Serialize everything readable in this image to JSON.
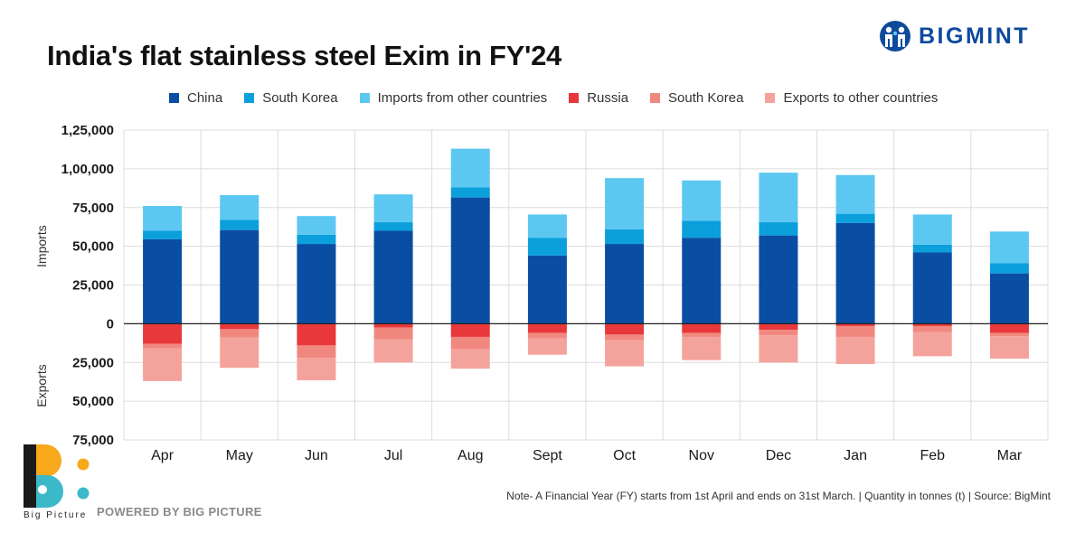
{
  "brand": {
    "name": "BIGMINT",
    "color": "#0d4a9c"
  },
  "footer": {
    "note": "Note- A Financial Year (FY) starts from 1st April and ends on 31st March. | Quantity in tonnes (t) | Source: BigMint",
    "powered_by": "POWERED BY BIG PICTURE",
    "logo_name": "Big Picture"
  },
  "chart_data": {
    "type": "bar",
    "stacked": true,
    "title": "India's flat stainless steel Exim in FY'24",
    "ylabel_positive": "Imports",
    "ylabel_negative": "Exports",
    "categories": [
      "Apr",
      "May",
      "Jun",
      "Jul",
      "Aug",
      "Sept",
      "Oct",
      "Nov",
      "Dec",
      "Jan",
      "Feb",
      "Mar"
    ],
    "ylim": [
      -75000,
      125000
    ],
    "ticks": [
      125000,
      100000,
      75000,
      50000,
      25000,
      0,
      -25000,
      -50000,
      -75000
    ],
    "tick_labels": [
      "1,25,000",
      "1,00,000",
      "75,000",
      "50,000",
      "25,000",
      "0",
      "25,000",
      "50,000",
      "75,000"
    ],
    "grid": true,
    "legend_position": "top",
    "series": [
      {
        "name": "China",
        "group": "imports",
        "color": "#0a4ea3",
        "values": [
          54500,
          60500,
          51500,
          60000,
          81500,
          44000,
          51500,
          55500,
          57000,
          65000,
          46000,
          32500
        ]
      },
      {
        "name": "South Korea",
        "group": "imports",
        "color": "#0b9fdc",
        "values": [
          5500,
          6500,
          6000,
          5500,
          6500,
          11500,
          9500,
          11000,
          8500,
          6000,
          5000,
          6500
        ]
      },
      {
        "name": "Imports from other countries",
        "group": "imports",
        "color": "#5cc8f1",
        "values": [
          16000,
          16000,
          12000,
          18000,
          25000,
          15000,
          33000,
          26000,
          32000,
          25000,
          19500,
          20500
        ]
      },
      {
        "name": "Russia",
        "group": "exports",
        "color": "#e8383b",
        "values": [
          -13000,
          -3500,
          -14000,
          -2500,
          -8500,
          -6000,
          -7000,
          -6000,
          -4000,
          -1500,
          -1500,
          -6000
        ]
      },
      {
        "name": "South Korea",
        "group": "exports",
        "color": "#f08880",
        "values": [
          -3000,
          -5500,
          -8000,
          -7500,
          -8000,
          -3500,
          -3500,
          -2500,
          -3500,
          -7000,
          -4000,
          -2000
        ]
      },
      {
        "name": "Exports to other countries",
        "group": "exports",
        "color": "#f4a39c",
        "values": [
          -21000,
          -19500,
          -14500,
          -15000,
          -12500,
          -10500,
          -17000,
          -15000,
          -17500,
          -17500,
          -15500,
          -14500
        ]
      }
    ]
  }
}
